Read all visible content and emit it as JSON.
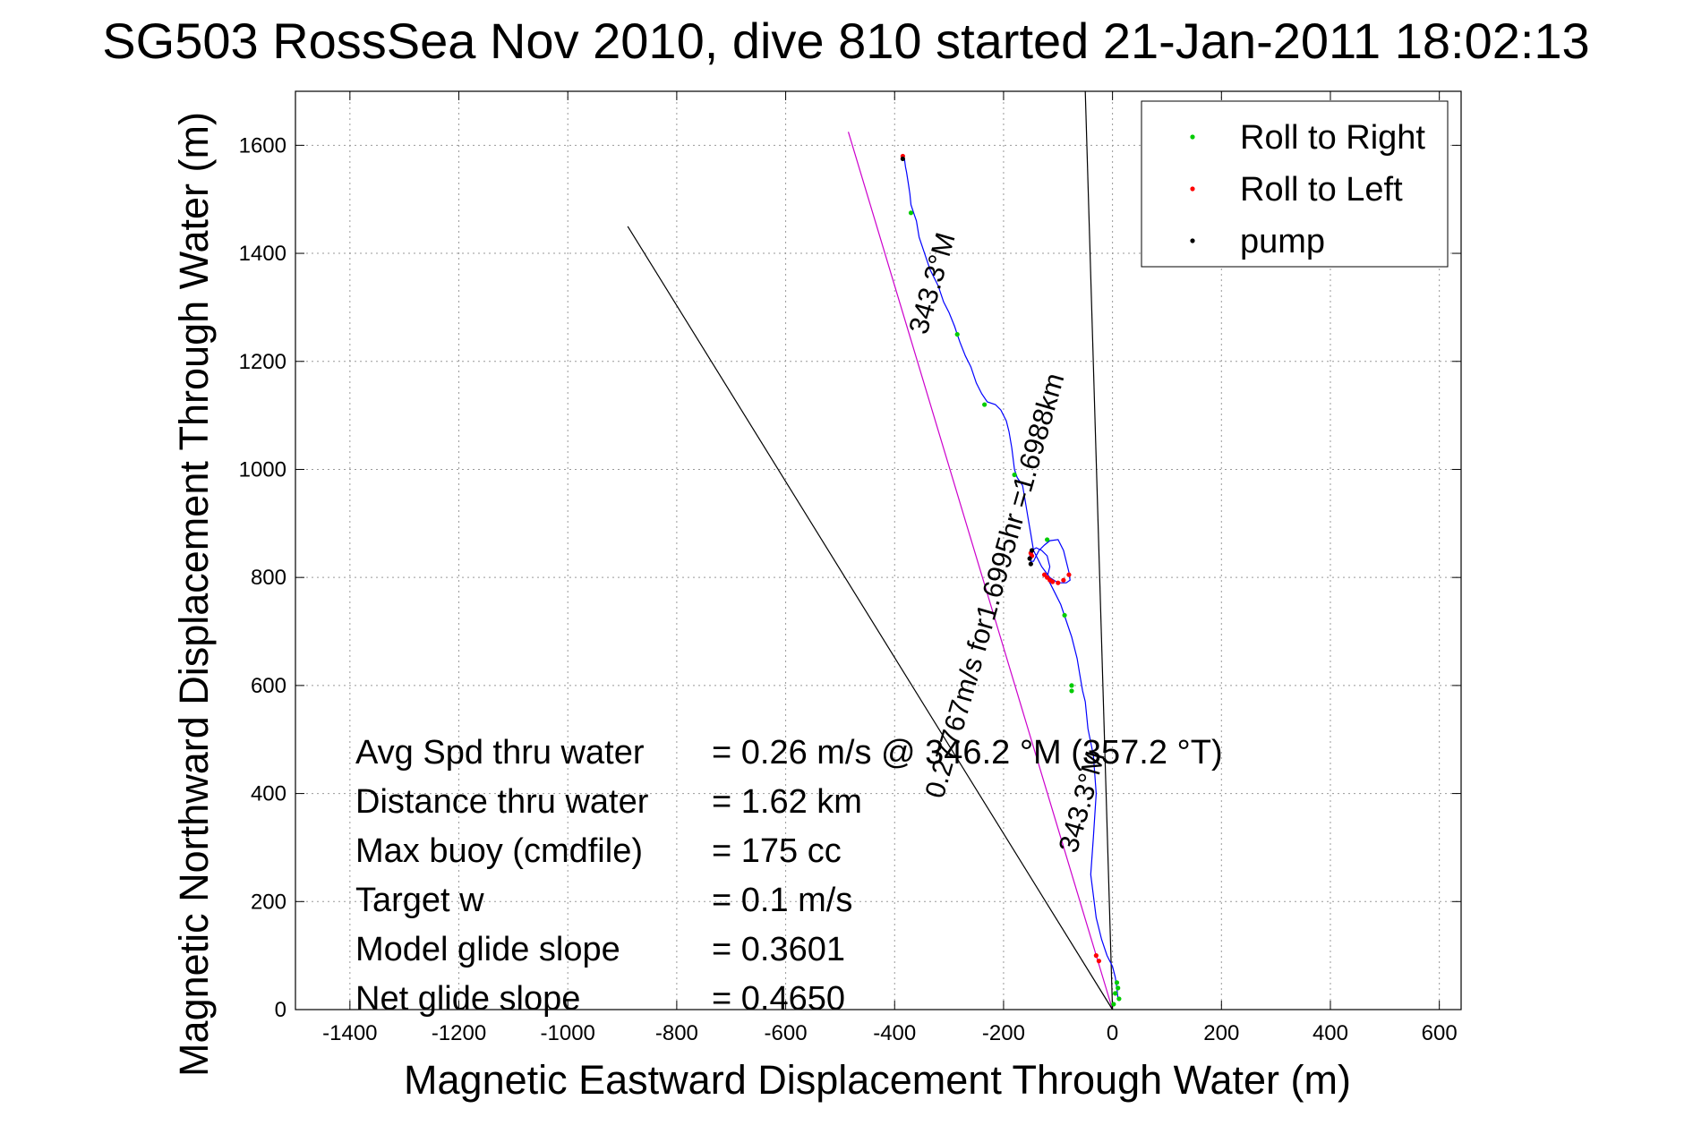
{
  "chart_data": {
    "type": "line",
    "title": "SG503 RossSea Nov 2010, dive 810 started 21-Jan-2011 18:02:13",
    "xlabel": "Magnetic Eastward Displacement Through Water (m)",
    "ylabel": "Magnetic Northward Displacement Through Water (m)",
    "xlim": [
      -1500,
      640
    ],
    "ylim": [
      0,
      1700
    ],
    "xticks": [
      -1400,
      -1200,
      -1000,
      -800,
      -600,
      -400,
      -200,
      0,
      200,
      400,
      600
    ],
    "yticks": [
      0,
      200,
      400,
      600,
      800,
      1000,
      1200,
      1400,
      1600
    ],
    "grid": true,
    "legend_position": "top-right",
    "legend": [
      {
        "label": "Roll to Right",
        "color": "#00cc00"
      },
      {
        "label": "Roll to Left",
        "color": "#ff0000"
      },
      {
        "label": "pump",
        "color": "#000000"
      }
    ],
    "track": {
      "name": "glider track",
      "color": "#0000ff",
      "x": [
        10,
        8,
        5,
        0,
        -10,
        -20,
        -30,
        -40,
        -35,
        -30,
        -35,
        -45,
        -50,
        -55,
        -60,
        -65,
        -75,
        -85,
        -95,
        -110,
        -120,
        -115,
        -120,
        -130,
        -140,
        -148,
        -152,
        -150,
        -145,
        -140,
        -135,
        -125,
        -115,
        -100,
        -90,
        -80,
        -78,
        -85,
        -100,
        -115,
        -130,
        -145,
        -150,
        -155,
        -160,
        -165,
        -175,
        -180,
        -185,
        -190,
        -195,
        -200,
        -205,
        -215,
        -230,
        -240,
        -250,
        -260,
        -270,
        -280,
        -285,
        -290,
        -300,
        -310,
        -320,
        -335,
        -345,
        -355,
        -360,
        -365,
        -370,
        -372,
        -375,
        -378,
        -380,
        -382
      ],
      "y": [
        20,
        40,
        60,
        80,
        100,
        130,
        170,
        250,
        320,
        400,
        470,
        520,
        570,
        590,
        620,
        650,
        690,
        720,
        750,
        780,
        800,
        820,
        840,
        850,
        855,
        850,
        840,
        830,
        830,
        840,
        850,
        860,
        868,
        870,
        850,
        810,
        795,
        790,
        790,
        800,
        820,
        850,
        880,
        910,
        940,
        970,
        985,
        1000,
        1040,
        1070,
        1090,
        1100,
        1110,
        1120,
        1125,
        1140,
        1160,
        1190,
        1210,
        1235,
        1250,
        1265,
        1290,
        1310,
        1340,
        1370,
        1400,
        1430,
        1460,
        1475,
        1490,
        1510,
        1530,
        1550,
        1560,
        1575
      ]
    },
    "roll_right_points": {
      "x": [
        5,
        10,
        12,
        8,
        2,
        -75,
        -75,
        -88,
        -120,
        -180,
        -235,
        -285,
        -370
      ],
      "y": [
        30,
        40,
        20,
        50,
        10,
        590,
        600,
        730,
        870,
        990,
        1120,
        1250,
        1475
      ]
    },
    "roll_left_points": {
      "x": [
        -25,
        -30,
        -80,
        -90,
        -100,
        -110,
        -115,
        -120,
        -125,
        -150,
        -148,
        -385
      ],
      "y": [
        90,
        100,
        805,
        795,
        790,
        792,
        795,
        800,
        805,
        845,
        840,
        1580
      ]
    },
    "pump_points": {
      "x": [
        -150,
        -152,
        -148,
        -385
      ],
      "y": [
        825,
        835,
        850,
        1575
      ]
    },
    "heading_lines": {
      "magenta_line": {
        "color": "#cc00cc",
        "x": [
          0,
          -485
        ],
        "y": [
          0,
          1625
        ]
      },
      "black_line_1": {
        "color": "#000000",
        "x": [
          0,
          -890
        ],
        "y": [
          0,
          1450
        ]
      },
      "black_line_2": {
        "color": "#000000",
        "x": [
          0,
          -50
        ],
        "y": [
          0,
          1700
        ]
      }
    },
    "annotations": [
      {
        "text": "343.3°M",
        "x": -315,
        "y": 1340,
        "angle": -74
      },
      {
        "text": "0.27767m/s for1.6995hr =1.6988km",
        "x": -200,
        "y": 780,
        "angle": -74
      },
      {
        "text": "343.3°M",
        "x": -40,
        "y": 380,
        "angle": -74
      }
    ],
    "stats": [
      {
        "label": "Avg Spd thru water",
        "value": "=  0.26 m/s @ 346.2 °M (357.2 °T)"
      },
      {
        "label": "Distance thru water",
        "value": "=  1.62 km"
      },
      {
        "label": "Max buoy (cmdfile)",
        "value": "= 175 cc"
      },
      {
        "label": "Target w",
        "value": "= 0.1 m/s"
      },
      {
        "label": "Model glide slope",
        "value": "= 0.3601"
      },
      {
        "label": "Net glide slope",
        "value": "= 0.4650"
      }
    ]
  }
}
